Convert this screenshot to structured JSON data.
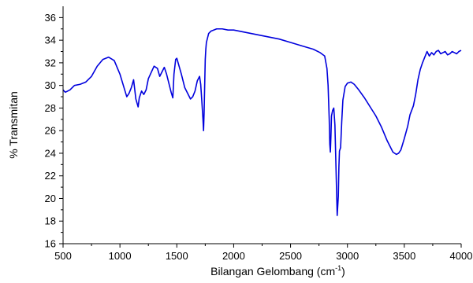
{
  "chart_data": {
    "type": "line",
    "title": "",
    "xlabel": "Bilangan Gelombang (cm",
    "xlabel_superscript": "-1",
    "xlabel_suffix": ")",
    "ylabel": "% Transmitan",
    "xlim": [
      500,
      4000
    ],
    "ylim": [
      16,
      37
    ],
    "x_ticks": [
      500,
      1000,
      1500,
      2000,
      2500,
      3000,
      3500,
      4000
    ],
    "y_ticks": [
      16,
      18,
      20,
      22,
      24,
      26,
      28,
      30,
      32,
      34,
      36
    ],
    "grid": false,
    "legend": "none",
    "series": [
      {
        "color": "#0000dd",
        "x": [
          500,
          520,
          560,
          600,
          650,
          700,
          750,
          800,
          850,
          900,
          950,
          1000,
          1030,
          1060,
          1080,
          1100,
          1120,
          1140,
          1160,
          1170,
          1190,
          1210,
          1230,
          1250,
          1300,
          1330,
          1350,
          1370,
          1390,
          1410,
          1430,
          1450,
          1465,
          1475,
          1490,
          1500,
          1540,
          1570,
          1600,
          1620,
          1640,
          1660,
          1680,
          1700,
          1710,
          1720,
          1730,
          1735,
          1740,
          1745,
          1750,
          1755,
          1760,
          1780,
          1800,
          1850,
          1900,
          1950,
          2000,
          2100,
          2200,
          2300,
          2400,
          2500,
          2600,
          2700,
          2760,
          2800,
          2820,
          2830,
          2840,
          2845,
          2850,
          2855,
          2860,
          2870,
          2880,
          2890,
          2900,
          2910,
          2920,
          2925,
          2930,
          2940,
          2950,
          2960,
          2980,
          3000,
          3030,
          3060,
          3100,
          3150,
          3200,
          3250,
          3300,
          3350,
          3400,
          3430,
          3450,
          3470,
          3500,
          3530,
          3550,
          3580,
          3600,
          3620,
          3640,
          3660,
          3680,
          3700,
          3720,
          3740,
          3760,
          3780,
          3800,
          3820,
          3840,
          3860,
          3880,
          3900,
          3920,
          3940,
          3960,
          3980,
          4000
        ],
        "y": [
          29.6,
          29.4,
          29.6,
          30.0,
          30.1,
          30.3,
          30.8,
          31.7,
          32.3,
          32.5,
          32.2,
          31.0,
          30.0,
          29.0,
          29.3,
          29.8,
          30.5,
          28.8,
          28.1,
          28.9,
          29.5,
          29.2,
          29.6,
          30.6,
          31.7,
          31.5,
          30.8,
          31.2,
          31.6,
          31.0,
          30.2,
          29.4,
          28.9,
          31.0,
          32.3,
          32.4,
          31.0,
          29.8,
          29.2,
          28.8,
          29.0,
          29.5,
          30.4,
          30.8,
          30.1,
          28.6,
          27.0,
          26.0,
          27.6,
          30.0,
          32.3,
          33.2,
          33.8,
          34.6,
          34.8,
          35.0,
          35.0,
          34.9,
          34.9,
          34.7,
          34.5,
          34.3,
          34.1,
          33.8,
          33.5,
          33.2,
          32.9,
          32.6,
          31.5,
          30.0,
          27.0,
          24.8,
          24.1,
          25.5,
          27.3,
          27.8,
          28.0,
          26.5,
          22.5,
          18.5,
          20.2,
          22.8,
          24.2,
          24.5,
          26.8,
          28.7,
          29.9,
          30.2,
          30.3,
          30.1,
          29.6,
          28.9,
          28.1,
          27.3,
          26.3,
          25.1,
          24.1,
          23.9,
          24.0,
          24.3,
          25.3,
          26.4,
          27.4,
          28.2,
          29.2,
          30.5,
          31.4,
          32.0,
          32.5,
          33.0,
          32.6,
          32.9,
          32.7,
          33.0,
          33.1,
          32.8,
          32.9,
          33.0,
          32.7,
          32.8,
          33.0,
          32.9,
          32.8,
          33.0,
          33.1
        ]
      }
    ]
  }
}
